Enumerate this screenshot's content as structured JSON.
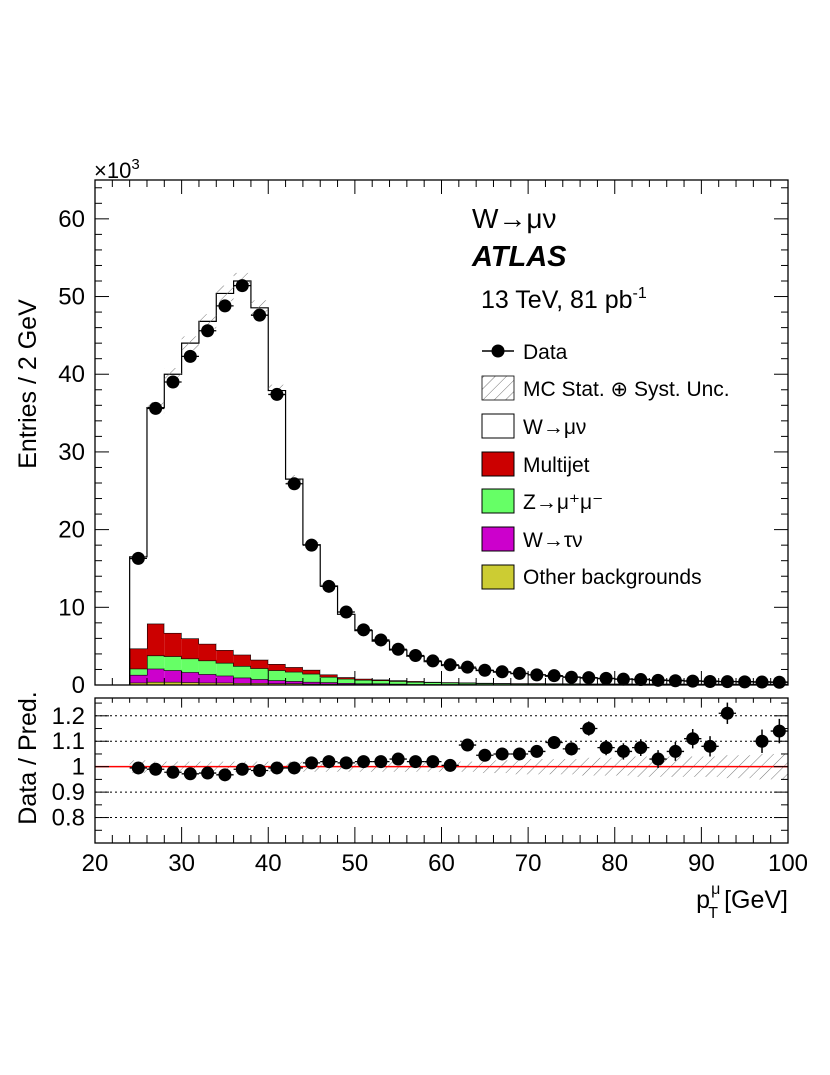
{
  "chart_data": [
    {
      "type": "stacked-histogram",
      "panel": "main",
      "ylabel": "Entries / 2 GeV",
      "y_exponent_label": "×10",
      "y_exponent_sup": "3",
      "ylim": [
        0,
        65
      ],
      "yticks": [
        "0",
        "10",
        "20",
        "30",
        "40",
        "50",
        "60"
      ],
      "xlim": [
        20,
        100
      ],
      "annotations": {
        "process": "W→μν",
        "experiment": "ATLAS",
        "lumi_prefix": "13 TeV, 81 pb",
        "lumi_sup": "-1"
      },
      "legend": [
        {
          "key": "data",
          "label": "Data"
        },
        {
          "key": "unc",
          "label": "MC Stat. ⊕ Syst. Unc."
        },
        {
          "key": "wmunu",
          "label": "W→μν"
        },
        {
          "key": "multijet",
          "label": "Multijet"
        },
        {
          "key": "zmumu",
          "label": "Z→μ⁺μ⁻"
        },
        {
          "key": "wtaunu",
          "label": "W→τν"
        },
        {
          "key": "other",
          "label": "Other backgrounds"
        }
      ],
      "colors": {
        "wmunu": "#ffffff",
        "multijet": "#cc0000",
        "zmumu": "#66ff66",
        "wtaunu": "#cc00cc",
        "other": "#cccc33",
        "ratio_line": "#ff0000"
      },
      "bin_edges": [
        24,
        26,
        28,
        30,
        32,
        34,
        36,
        38,
        40,
        42,
        44,
        46,
        48,
        50,
        52,
        54,
        56,
        58,
        60,
        62,
        64,
        66,
        68,
        70,
        72,
        74,
        76,
        78,
        80,
        82,
        84,
        86,
        88,
        90,
        92,
        94,
        96,
        98,
        100
      ],
      "bin_centers": [
        25,
        27,
        29,
        31,
        33,
        35,
        37,
        39,
        41,
        43,
        45,
        47,
        49,
        51,
        53,
        55,
        57,
        59,
        61,
        63,
        65,
        67,
        69,
        71,
        73,
        75,
        77,
        79,
        81,
        83,
        85,
        87,
        89,
        91,
        93,
        95,
        97,
        99
      ],
      "series": [
        {
          "name": "Other backgrounds",
          "key": "other",
          "values": [
            0.3,
            0.4,
            0.4,
            0.35,
            0.3,
            0.3,
            0.25,
            0.25,
            0.2,
            0.2,
            0.15,
            0.15,
            0.1,
            0.1,
            0.1,
            0.1,
            0.05,
            0.05,
            0.05,
            0.05,
            0.05,
            0.05,
            0.05,
            0.05,
            0.05,
            0.05,
            0.05,
            0.05,
            0.05,
            0.05,
            0.05,
            0.05,
            0.05,
            0.05,
            0.05,
            0.05,
            0.05,
            0.05
          ]
        },
        {
          "name": "W→τν",
          "key": "wtaunu",
          "values": [
            1.0,
            1.7,
            1.5,
            1.3,
            1.1,
            0.9,
            0.7,
            0.5,
            0.4,
            0.3,
            0.25,
            0.2,
            0.15,
            0.1,
            0.1,
            0.05,
            0.05,
            0.05,
            0.05,
            0.05,
            0.03,
            0.03,
            0.03,
            0.03,
            0.03,
            0.03,
            0.03,
            0.03,
            0.03,
            0.03,
            0.03,
            0.03,
            0.03,
            0.03,
            0.03,
            0.03,
            0.03,
            0.03
          ]
        },
        {
          "name": "Z→μ⁺μ⁻",
          "key": "zmumu",
          "values": [
            0.8,
            1.7,
            1.8,
            1.75,
            1.75,
            1.65,
            1.5,
            1.4,
            1.3,
            1.2,
            1.05,
            0.7,
            0.55,
            0.45,
            0.4,
            0.35,
            0.3,
            0.25,
            0.2,
            0.17,
            0.14,
            0.12,
            0.1,
            0.1,
            0.08,
            0.08,
            0.06,
            0.06,
            0.06,
            0.05,
            0.05,
            0.05,
            0.04,
            0.04,
            0.04,
            0.04,
            0.04,
            0.04
          ]
        },
        {
          "name": "Multijet",
          "key": "multijet",
          "values": [
            2.6,
            4.1,
            3.0,
            2.6,
            2.15,
            1.65,
            1.45,
            1.1,
            0.8,
            0.6,
            0.5,
            0.3,
            0.2,
            0.15,
            0.1,
            0.1,
            0.1,
            0.05,
            0.05,
            0.05,
            0.05,
            0.04,
            0.04,
            0.04,
            0.04,
            0.04,
            0.04,
            0.04,
            0.04,
            0.04,
            0.04,
            0.04,
            0.04,
            0.04,
            0.04,
            0.04,
            0.04,
            0.04
          ]
        },
        {
          "name": "W→μν",
          "key": "wmunu",
          "values": [
            11.8,
            27.8,
            33.3,
            38.0,
            41.5,
            45.9,
            48.1,
            45.3,
            35.2,
            24.2,
            16.1,
            11.4,
            8.1,
            6.2,
            4.95,
            3.9,
            3.2,
            2.6,
            2.15,
            1.83,
            1.6,
            1.41,
            1.24,
            1.08,
            0.93,
            0.84,
            0.72,
            0.64,
            0.6,
            0.55,
            0.47,
            0.43,
            0.37,
            0.34,
            0.3,
            0.27,
            0.25,
            0.23
          ]
        }
      ],
      "data": {
        "name": "Data",
        "values": [
          16.3,
          35.6,
          39.0,
          42.3,
          45.6,
          48.8,
          51.4,
          47.6,
          37.4,
          25.9,
          18.0,
          12.7,
          9.4,
          7.1,
          5.8,
          4.6,
          3.8,
          3.1,
          2.6,
          2.3,
          1.9,
          1.7,
          1.5,
          1.3,
          1.2,
          1.0,
          0.95,
          0.85,
          0.75,
          0.7,
          0.6,
          0.55,
          0.5,
          0.45,
          0.43,
          0.4,
          0.38,
          0.35
        ]
      }
    },
    {
      "type": "ratio",
      "panel": "ratio",
      "ylabel": "Data / Pred.",
      "ylim": [
        0.7,
        1.27
      ],
      "yticks": [
        "0.8",
        "0.9",
        "1",
        "1.1",
        "1.2"
      ],
      "xlabel_main": "p",
      "xlabel_sup": "μ",
      "xlabel_sub": "T",
      "xlabel_unit": "[GeV]",
      "xlim": [
        20,
        100
      ],
      "xticks": [
        "20",
        "30",
        "40",
        "50",
        "60",
        "70",
        "80",
        "90",
        "100"
      ],
      "reference": 1.0,
      "uncertainty_halfwidth": [
        0.025,
        0.02,
        0.02,
        0.02,
        0.02,
        0.02,
        0.02,
        0.02,
        0.02,
        0.02,
        0.02,
        0.02,
        0.02,
        0.02,
        0.02,
        0.02,
        0.02,
        0.02,
        0.02,
        0.02,
        0.025,
        0.025,
        0.03,
        0.03,
        0.03,
        0.03,
        0.035,
        0.035,
        0.035,
        0.04,
        0.04,
        0.04,
        0.04,
        0.04,
        0.045,
        0.045,
        0.05,
        0.05
      ],
      "x": [
        25,
        27,
        29,
        31,
        33,
        35,
        37,
        39,
        41,
        43,
        45,
        47,
        49,
        51,
        53,
        55,
        57,
        59,
        61,
        63,
        65,
        67,
        69,
        71,
        73,
        75,
        77,
        79,
        81,
        83,
        85,
        87,
        89,
        91,
        93,
        95,
        97,
        99
      ],
      "values": [
        0.995,
        0.99,
        0.978,
        0.972,
        0.975,
        0.968,
        0.99,
        0.985,
        0.995,
        0.995,
        1.015,
        1.02,
        1.015,
        1.02,
        1.02,
        1.03,
        1.02,
        1.02,
        1.005,
        1.085,
        1.045,
        1.05,
        1.05,
        1.06,
        1.095,
        1.07,
        1.15,
        1.075,
        1.06,
        1.075,
        1.03,
        1.06,
        1.11,
        1.08,
        1.21,
        null,
        1.1,
        1.14
      ],
      "errors": [
        0.01,
        0.01,
        0.01,
        0.01,
        0.01,
        0.01,
        0.01,
        0.01,
        0.01,
        0.01,
        0.01,
        0.01,
        0.01,
        0.012,
        0.012,
        0.015,
        0.015,
        0.015,
        0.015,
        0.018,
        0.02,
        0.02,
        0.022,
        0.024,
        0.025,
        0.026,
        0.028,
        0.03,
        0.032,
        0.033,
        0.035,
        0.037,
        0.038,
        0.04,
        0.042,
        0.044,
        0.046,
        0.048
      ]
    }
  ]
}
